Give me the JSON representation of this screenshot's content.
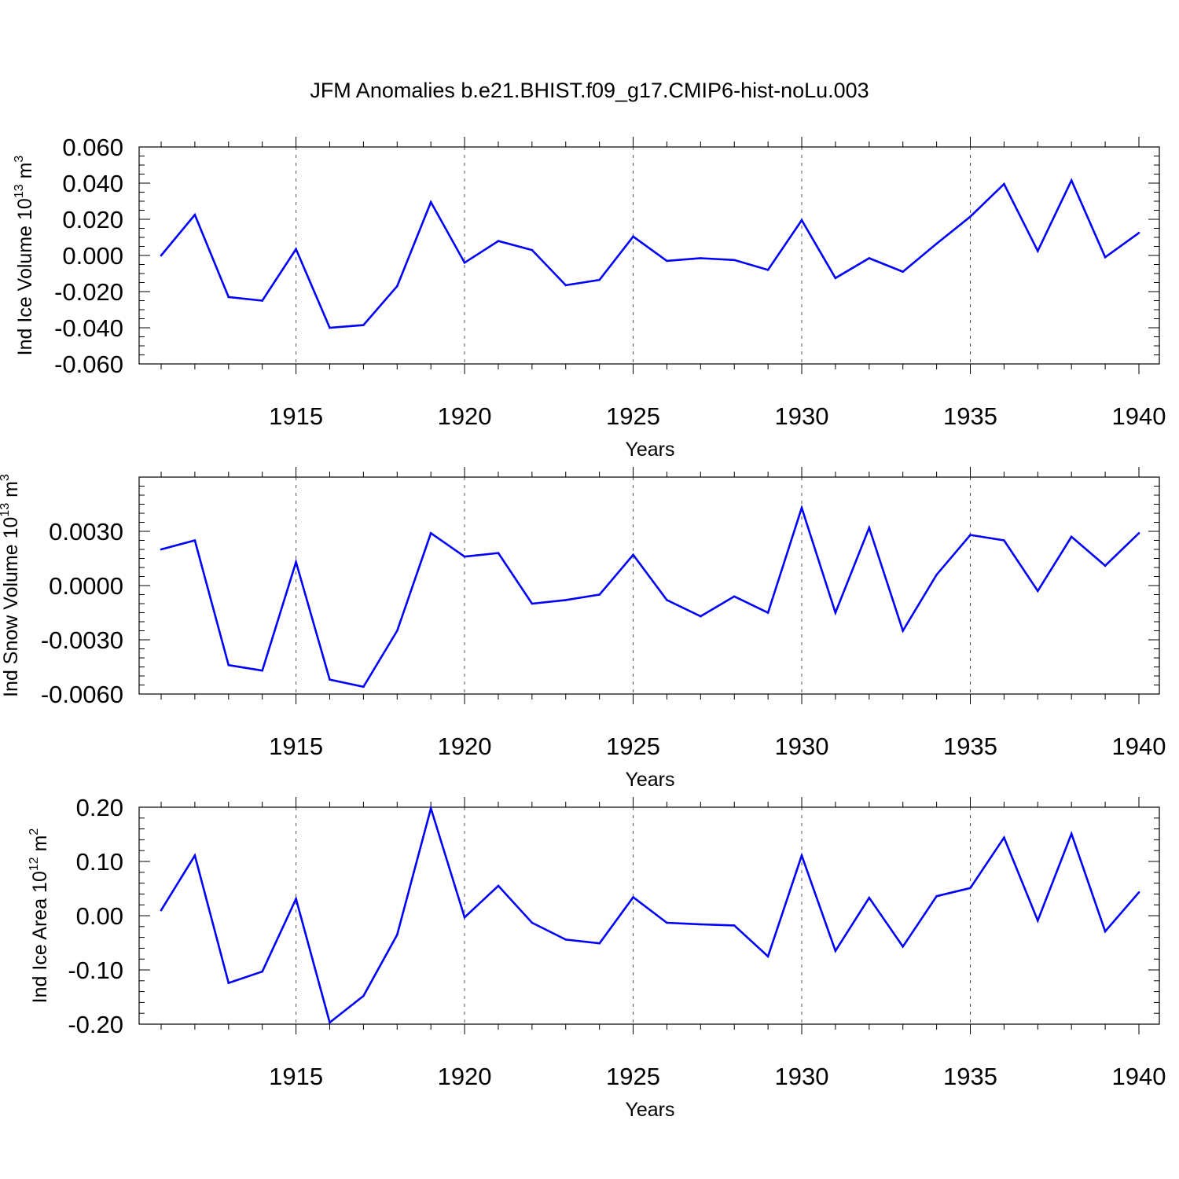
{
  "title": "JFM Anomalies b.e21.BHIST.f09_g17.CMIP6-hist-noLu.003",
  "line_color": "#0000ff",
  "chart_data": [
    {
      "type": "line",
      "ylabel": "Ind Ice Volume 10",
      "ylabel_exp": "13",
      "ylabel_unit": " m",
      "ylabel_unit_exp": "3",
      "xlabel": "Years",
      "xlim": [
        1911,
        1940
      ],
      "ylim": [
        -0.06,
        0.06
      ],
      "yticks": [
        -0.06,
        -0.04,
        -0.02,
        0.0,
        0.02,
        0.04,
        0.06
      ],
      "yticklabels": [
        "-0.060",
        "-0.040",
        "-0.020",
        "0.000",
        "0.020",
        "0.040",
        "0.060"
      ],
      "yminor": 0.005,
      "xticks": [
        1915,
        1920,
        1925,
        1930,
        1935,
        1940
      ],
      "xticklabels": [
        "1915",
        "1920",
        "1925",
        "1930",
        "1935",
        "1940"
      ],
      "x": [
        1911,
        1912,
        1913,
        1914,
        1915,
        1916,
        1917,
        1918,
        1919,
        1920,
        1921,
        1922,
        1923,
        1924,
        1925,
        1926,
        1927,
        1928,
        1929,
        1930,
        1931,
        1932,
        1933,
        1934,
        1935,
        1936,
        1937,
        1938,
        1939,
        1940
      ],
      "values": [
        0.0,
        0.0225,
        -0.023,
        -0.025,
        0.0035,
        -0.04,
        -0.0385,
        -0.017,
        0.0295,
        -0.004,
        0.008,
        0.003,
        -0.0165,
        -0.0135,
        0.0105,
        -0.003,
        -0.0015,
        -0.0025,
        -0.008,
        0.0195,
        -0.0125,
        -0.0015,
        -0.009,
        0.0065,
        0.0215,
        0.0395,
        0.0025,
        0.0415,
        -0.001,
        0.0125
      ]
    },
    {
      "type": "line",
      "ylabel": "Ind Snow Volume 10",
      "ylabel_exp": "13",
      "ylabel_unit": " m",
      "ylabel_unit_exp": "3",
      "xlabel": "Years",
      "xlim": [
        1911,
        1940
      ],
      "ylim": [
        -0.006,
        0.006
      ],
      "yticks": [
        -0.006,
        -0.003,
        0.0,
        0.003
      ],
      "yticklabels": [
        "-0.0060",
        "-0.0030",
        "0.0000",
        "0.0030"
      ],
      "yminor": 0.0005,
      "xticks": [
        1915,
        1920,
        1925,
        1930,
        1935,
        1940
      ],
      "xticklabels": [
        "1915",
        "1920",
        "1925",
        "1930",
        "1935",
        "1940"
      ],
      "x": [
        1911,
        1912,
        1913,
        1914,
        1915,
        1916,
        1917,
        1918,
        1919,
        1920,
        1921,
        1922,
        1923,
        1924,
        1925,
        1926,
        1927,
        1928,
        1929,
        1930,
        1931,
        1932,
        1933,
        1934,
        1935,
        1936,
        1937,
        1938,
        1939,
        1940
      ],
      "values": [
        0.002,
        0.0025,
        -0.0044,
        -0.0047,
        0.0013,
        -0.0052,
        -0.0056,
        -0.0025,
        0.0029,
        0.0016,
        0.0018,
        -0.001,
        -0.0008,
        -0.0005,
        0.0017,
        -0.0008,
        -0.0017,
        -0.0006,
        -0.0015,
        0.0043,
        -0.0015,
        0.0032,
        -0.0025,
        0.0006,
        0.0028,
        0.0025,
        -0.0003,
        0.0027,
        0.0011,
        0.0029
      ]
    },
    {
      "type": "line",
      "ylabel": "Ind Ice Area 10",
      "ylabel_exp": "12",
      "ylabel_unit": " m",
      "ylabel_unit_exp": "2",
      "xlabel": "Years",
      "xlim": [
        1911,
        1940
      ],
      "ylim": [
        -0.2,
        0.2
      ],
      "yticks": [
        -0.2,
        -0.1,
        0.0,
        0.1,
        0.2
      ],
      "yticklabels": [
        "-0.20",
        "-0.10",
        "0.00",
        "0.10",
        "0.20"
      ],
      "yminor": 0.02,
      "xticks": [
        1915,
        1920,
        1925,
        1930,
        1935,
        1940
      ],
      "xticklabels": [
        "1915",
        "1920",
        "1925",
        "1930",
        "1935",
        "1940"
      ],
      "x": [
        1911,
        1912,
        1913,
        1914,
        1915,
        1916,
        1917,
        1918,
        1919,
        1920,
        1921,
        1922,
        1923,
        1924,
        1925,
        1926,
        1927,
        1928,
        1929,
        1930,
        1931,
        1932,
        1933,
        1934,
        1935,
        1936,
        1937,
        1938,
        1939,
        1940
      ],
      "values": [
        0.01,
        0.111,
        -0.124,
        -0.103,
        0.031,
        -0.197,
        -0.148,
        -0.035,
        0.198,
        -0.003,
        0.055,
        -0.013,
        -0.044,
        -0.051,
        0.034,
        -0.013,
        -0.016,
        -0.018,
        -0.075,
        0.111,
        -0.065,
        0.033,
        -0.057,
        0.036,
        0.051,
        0.144,
        -0.009,
        0.151,
        -0.029,
        0.043
      ]
    }
  ]
}
